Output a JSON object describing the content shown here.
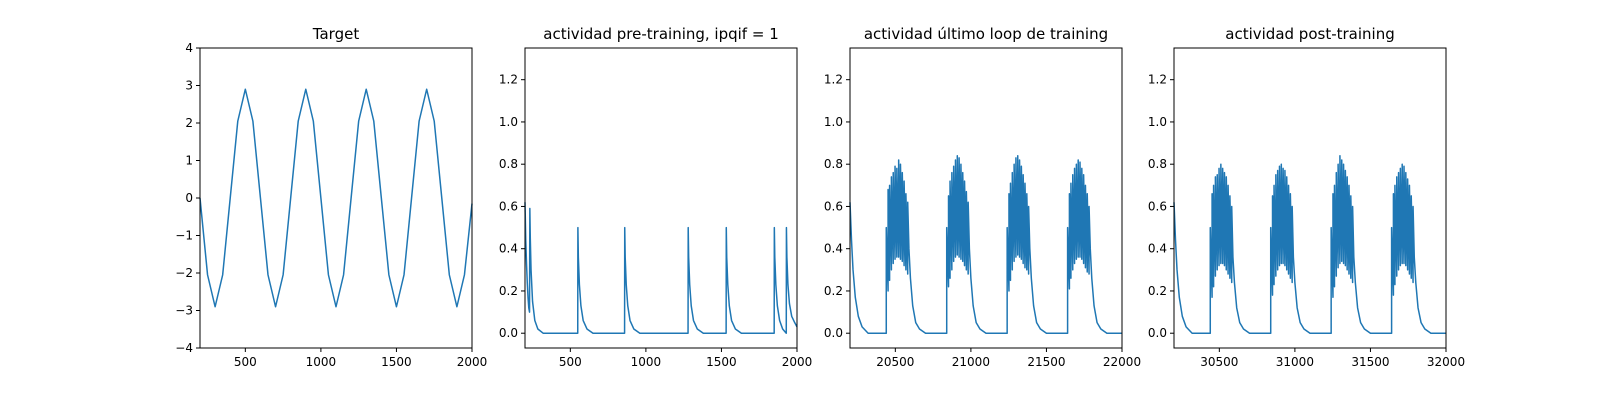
{
  "chart_data": [
    {
      "type": "line",
      "title": "Target",
      "xlim": [
        200,
        2000
      ],
      "ylim": [
        -4,
        4
      ],
      "xticks": [
        500,
        1000,
        1500,
        2000
      ],
      "yticks": [
        -4,
        -3,
        -2,
        -1,
        0,
        1,
        2,
        3,
        4
      ],
      "x_tick_labels": [
        "500",
        "1000",
        "1500",
        "2000"
      ],
      "y_tick_labels": [
        "−4",
        "−3",
        "−2",
        "−1",
        "0",
        "1",
        "2",
        "3",
        "4"
      ],
      "grid": false,
      "color": "#1f77b4",
      "series": [
        {
          "x": [
            200,
            250,
            300,
            350,
            400,
            450,
            500,
            550,
            600,
            650,
            700,
            750,
            800,
            850,
            900,
            950,
            1000,
            1050,
            1100,
            1150,
            1200,
            1250,
            1300,
            1350,
            1400,
            1450,
            1500,
            1550,
            1600,
            1650,
            1700,
            1750,
            1800,
            1850,
            1900,
            1950,
            2000
          ],
          "values": [
            0.0,
            -2.05,
            -2.9,
            -2.05,
            0.0,
            2.05,
            2.9,
            2.05,
            0.0,
            -2.05,
            -2.9,
            -2.05,
            0.0,
            2.05,
            2.9,
            2.05,
            0.0,
            -2.05,
            -2.9,
            -2.05,
            0.0,
            2.05,
            2.9,
            2.05,
            0.0,
            -2.05,
            -2.9,
            -2.05,
            0.0,
            2.05,
            2.9,
            2.05,
            0.0,
            -2.05,
            -2.9,
            -2.05,
            -0.15
          ]
        }
      ]
    },
    {
      "type": "line",
      "title": "actividad pre-training, ipqif = 1",
      "xlim": [
        200,
        2000
      ],
      "ylim": [
        -0.07,
        1.35
      ],
      "xticks": [
        500,
        1000,
        1500,
        2000
      ],
      "yticks": [
        0.0,
        0.2,
        0.4,
        0.6,
        0.8,
        1.0,
        1.2
      ],
      "x_tick_labels": [
        "500",
        "1000",
        "1500",
        "2000"
      ],
      "y_tick_labels": [
        "0.0",
        "0.2",
        "0.4",
        "0.6",
        "0.8",
        "1.0",
        "1.2"
      ],
      "grid": false,
      "color": "#1f77b4",
      "series": [
        {
          "x": [
            200,
            205,
            210,
            215,
            220,
            225,
            230,
            232,
            235,
            240,
            250,
            265,
            285,
            320,
            380,
            450,
            549,
            550,
            553,
            560,
            570,
            585,
            610,
            650,
            720,
            859,
            860,
            863,
            870,
            880,
            895,
            920,
            960,
            1040,
            1150,
            1279,
            1280,
            1283,
            1290,
            1300,
            1315,
            1340,
            1380,
            1460,
            1531,
            1532,
            1535,
            1542,
            1552,
            1567,
            1592,
            1632,
            1720,
            1849,
            1850,
            1853,
            1860,
            1870,
            1885,
            1905,
            1929,
            1930,
            1933,
            1940,
            1950,
            1965,
            1985,
            2000
          ],
          "values": [
            0.62,
            0.44,
            0.33,
            0.24,
            0.17,
            0.12,
            0.1,
            0.59,
            0.45,
            0.3,
            0.15,
            0.06,
            0.02,
            0.0,
            0.0,
            0.0,
            0.0,
            0.5,
            0.36,
            0.23,
            0.13,
            0.06,
            0.02,
            0.0,
            0.0,
            0.0,
            0.5,
            0.36,
            0.23,
            0.13,
            0.06,
            0.02,
            0.0,
            0.0,
            0.0,
            0.0,
            0.5,
            0.36,
            0.23,
            0.13,
            0.06,
            0.02,
            0.0,
            0.0,
            0.0,
            0.5,
            0.36,
            0.23,
            0.13,
            0.06,
            0.02,
            0.0,
            0.0,
            0.0,
            0.5,
            0.36,
            0.23,
            0.13,
            0.06,
            0.02,
            0.0,
            0.5,
            0.36,
            0.23,
            0.14,
            0.08,
            0.05,
            0.03
          ]
        }
      ]
    },
    {
      "type": "line",
      "title": "actividad último loop de training",
      "xlim": [
        20200,
        22000
      ],
      "ylim": [
        -0.07,
        1.35
      ],
      "xticks": [
        20500,
        21000,
        21500,
        22000
      ],
      "yticks": [
        0.0,
        0.2,
        0.4,
        0.6,
        0.8,
        1.0,
        1.2
      ],
      "x_tick_labels": [
        "20500",
        "21000",
        "21500",
        "22000"
      ],
      "y_tick_labels": [
        "0.0",
        "0.2",
        "0.4",
        "0.6",
        "0.8",
        "1.0",
        "1.2"
      ],
      "grid": false,
      "color": "#1f77b4",
      "series": [
        {
          "x": [
            20200,
            20210,
            20220,
            20235,
            20255,
            20280,
            20320,
            20380,
            20440,
            20440,
            20452,
            20452,
            20462,
            20462,
            20474,
            20474,
            20486,
            20486,
            20498,
            20498,
            20510,
            20510,
            20522,
            20522,
            20534,
            20534,
            20546,
            20546,
            20558,
            20558,
            20570,
            20570,
            20582,
            20582,
            20590,
            20600,
            20615,
            20635,
            20660,
            20700,
            20760,
            20840,
            20840,
            20852,
            20852,
            20862,
            20862,
            20874,
            20874,
            20886,
            20886,
            20898,
            20898,
            20910,
            20910,
            20922,
            20922,
            20934,
            20934,
            20946,
            20946,
            20958,
            20958,
            20970,
            20970,
            20982,
            20982,
            20990,
            21000,
            21015,
            21035,
            21060,
            21100,
            21160,
            21240,
            21240,
            21252,
            21252,
            21262,
            21262,
            21274,
            21274,
            21286,
            21286,
            21298,
            21298,
            21310,
            21310,
            21322,
            21322,
            21334,
            21334,
            21346,
            21346,
            21358,
            21358,
            21370,
            21370,
            21382,
            21382,
            21390,
            21400,
            21415,
            21435,
            21460,
            21500,
            21560,
            21640,
            21640,
            21652,
            21652,
            21662,
            21662,
            21674,
            21674,
            21686,
            21686,
            21698,
            21698,
            21710,
            21710,
            21722,
            21722,
            21734,
            21734,
            21746,
            21746,
            21758,
            21758,
            21770,
            21770,
            21782,
            21782,
            21790,
            21800,
            21815,
            21835,
            21860,
            21900,
            21960,
            22000
          ],
          "values": [
            0.62,
            0.44,
            0.3,
            0.17,
            0.08,
            0.03,
            0.0,
            0.0,
            0.0,
            0.5,
            0.2,
            0.68,
            0.25,
            0.7,
            0.3,
            0.74,
            0.33,
            0.76,
            0.35,
            0.79,
            0.36,
            0.78,
            0.36,
            0.82,
            0.35,
            0.8,
            0.34,
            0.76,
            0.32,
            0.72,
            0.3,
            0.66,
            0.28,
            0.62,
            0.4,
            0.26,
            0.13,
            0.05,
            0.02,
            0.0,
            0.0,
            0.0,
            0.5,
            0.22,
            0.65,
            0.26,
            0.72,
            0.3,
            0.76,
            0.34,
            0.79,
            0.36,
            0.82,
            0.37,
            0.84,
            0.36,
            0.83,
            0.35,
            0.8,
            0.34,
            0.76,
            0.32,
            0.72,
            0.3,
            0.67,
            0.28,
            0.62,
            0.4,
            0.26,
            0.13,
            0.05,
            0.02,
            0.0,
            0.0,
            0.0,
            0.5,
            0.2,
            0.66,
            0.25,
            0.71,
            0.3,
            0.76,
            0.34,
            0.8,
            0.36,
            0.83,
            0.37,
            0.84,
            0.36,
            0.82,
            0.35,
            0.79,
            0.33,
            0.75,
            0.31,
            0.71,
            0.3,
            0.66,
            0.28,
            0.6,
            0.4,
            0.26,
            0.13,
            0.05,
            0.02,
            0.0,
            0.0,
            0.0,
            0.5,
            0.21,
            0.66,
            0.26,
            0.71,
            0.3,
            0.75,
            0.33,
            0.78,
            0.35,
            0.8,
            0.36,
            0.82,
            0.36,
            0.81,
            0.35,
            0.78,
            0.33,
            0.75,
            0.31,
            0.7,
            0.29,
            0.66,
            0.28,
            0.6,
            0.4,
            0.26,
            0.13,
            0.05,
            0.02,
            0.0,
            0.0,
            0.0
          ]
        }
      ]
    },
    {
      "type": "line",
      "title": "actividad post-training",
      "xlim": [
        30200,
        32000
      ],
      "ylim": [
        -0.07,
        1.35
      ],
      "xticks": [
        30500,
        31000,
        31500,
        32000
      ],
      "yticks": [
        0.0,
        0.2,
        0.4,
        0.6,
        0.8,
        1.0,
        1.2
      ],
      "x_tick_labels": [
        "30500",
        "31000",
        "31500",
        "32000"
      ],
      "y_tick_labels": [
        "0.0",
        "0.2",
        "0.4",
        "0.6",
        "0.8",
        "1.0",
        "1.2"
      ],
      "grid": false,
      "color": "#1f77b4",
      "series": [
        {
          "x": [
            30200,
            30210,
            30220,
            30235,
            30255,
            30280,
            30320,
            30380,
            30440,
            30440,
            30452,
            30452,
            30462,
            30462,
            30474,
            30474,
            30486,
            30486,
            30498,
            30498,
            30510,
            30510,
            30522,
            30522,
            30534,
            30534,
            30546,
            30546,
            30558,
            30558,
            30570,
            30570,
            30582,
            30582,
            30590,
            30600,
            30615,
            30635,
            30660,
            30700,
            30760,
            30840,
            30840,
            30852,
            30852,
            30862,
            30862,
            30874,
            30874,
            30886,
            30886,
            30898,
            30898,
            30910,
            30910,
            30922,
            30922,
            30934,
            30934,
            30946,
            30946,
            30958,
            30958,
            30970,
            30970,
            30982,
            30982,
            30990,
            31000,
            31015,
            31035,
            31060,
            31100,
            31160,
            31240,
            31240,
            31252,
            31252,
            31262,
            31262,
            31274,
            31274,
            31286,
            31286,
            31298,
            31298,
            31310,
            31310,
            31322,
            31322,
            31334,
            31334,
            31346,
            31346,
            31358,
            31358,
            31370,
            31370,
            31382,
            31382,
            31390,
            31400,
            31415,
            31435,
            31460,
            31500,
            31560,
            31640,
            31640,
            31652,
            31652,
            31662,
            31662,
            31674,
            31674,
            31686,
            31686,
            31698,
            31698,
            31710,
            31710,
            31722,
            31722,
            31734,
            31734,
            31746,
            31746,
            31758,
            31758,
            31770,
            31770,
            31782,
            31782,
            31790,
            31800,
            31815,
            31835,
            31860,
            31900,
            31960,
            32000
          ],
          "values": [
            0.62,
            0.44,
            0.3,
            0.17,
            0.08,
            0.03,
            0.0,
            0.0,
            0.0,
            0.5,
            0.17,
            0.66,
            0.22,
            0.7,
            0.27,
            0.74,
            0.3,
            0.75,
            0.32,
            0.78,
            0.33,
            0.8,
            0.33,
            0.78,
            0.32,
            0.76,
            0.3,
            0.74,
            0.28,
            0.7,
            0.26,
            0.65,
            0.24,
            0.6,
            0.36,
            0.24,
            0.12,
            0.05,
            0.02,
            0.0,
            0.0,
            0.0,
            0.5,
            0.18,
            0.65,
            0.23,
            0.7,
            0.27,
            0.75,
            0.3,
            0.77,
            0.32,
            0.79,
            0.33,
            0.8,
            0.33,
            0.78,
            0.32,
            0.77,
            0.3,
            0.74,
            0.28,
            0.7,
            0.26,
            0.66,
            0.24,
            0.6,
            0.36,
            0.24,
            0.12,
            0.05,
            0.02,
            0.0,
            0.0,
            0.0,
            0.5,
            0.17,
            0.66,
            0.22,
            0.7,
            0.27,
            0.76,
            0.31,
            0.8,
            0.33,
            0.84,
            0.34,
            0.82,
            0.33,
            0.8,
            0.32,
            0.77,
            0.3,
            0.74,
            0.28,
            0.7,
            0.26,
            0.65,
            0.24,
            0.6,
            0.36,
            0.24,
            0.12,
            0.05,
            0.02,
            0.0,
            0.0,
            0.0,
            0.5,
            0.18,
            0.66,
            0.23,
            0.7,
            0.27,
            0.74,
            0.3,
            0.76,
            0.32,
            0.78,
            0.33,
            0.8,
            0.33,
            0.79,
            0.32,
            0.76,
            0.3,
            0.73,
            0.28,
            0.7,
            0.26,
            0.65,
            0.24,
            0.6,
            0.36,
            0.24,
            0.12,
            0.05,
            0.02,
            0.0,
            0.0,
            0.0
          ]
        }
      ]
    }
  ]
}
